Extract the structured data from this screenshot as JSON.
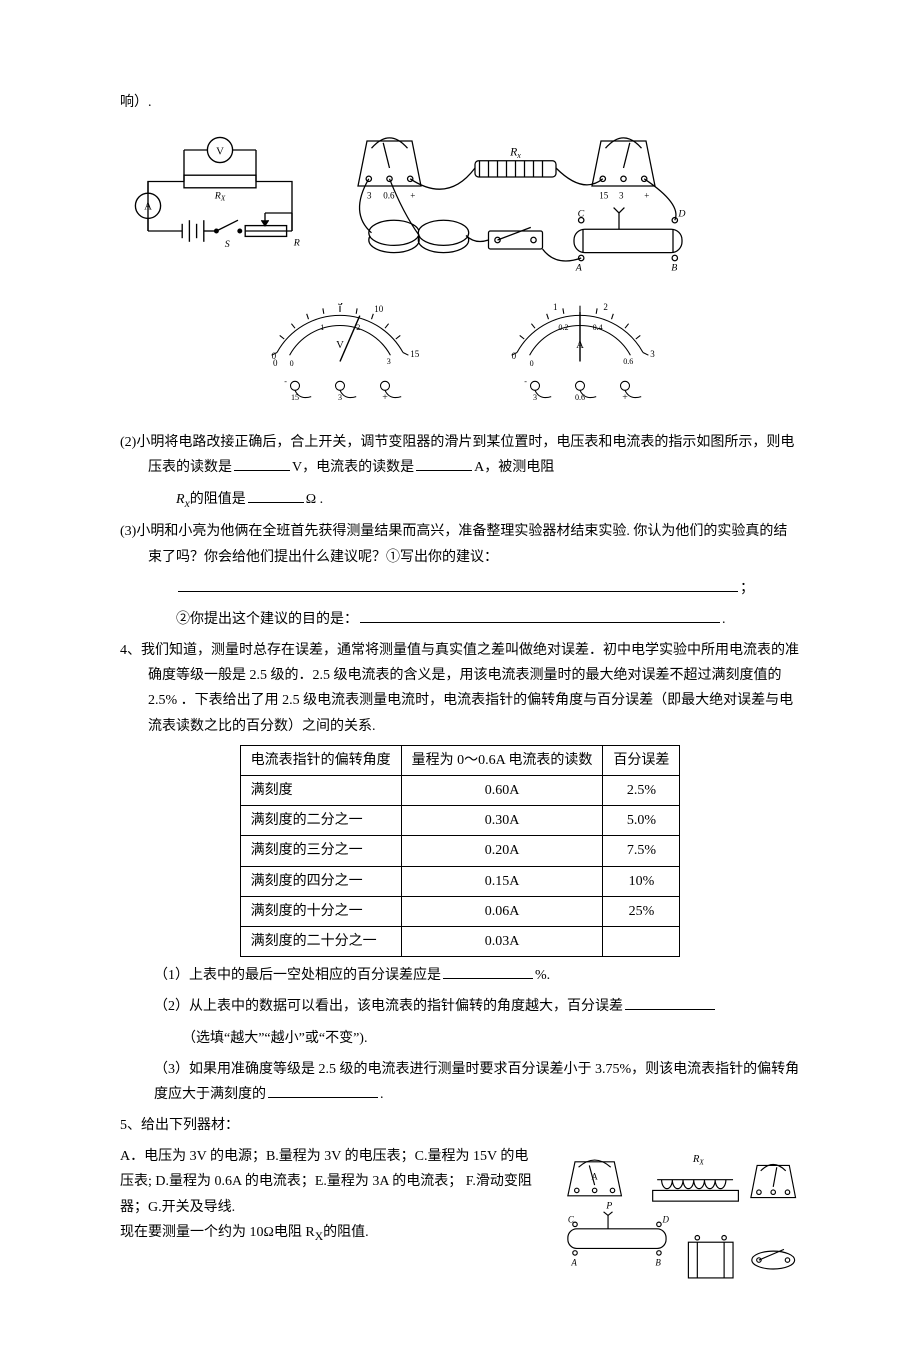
{
  "top_trail": "响）.",
  "circuit_labels": {
    "V": "V",
    "A": "A",
    "Rx": "Rₓ",
    "S": "S",
    "R": "R"
  },
  "physical_labels": {
    "left_scale": "3",
    "left_scale2": "0.6",
    "plus": "+",
    "Rx": "Rₓ",
    "right_scale": "15",
    "right_scale2": "3",
    "A": "A",
    "B": "B",
    "C": "C",
    "D": "D"
  },
  "voltmeter": {
    "top_ticks": [
      "0",
      "",
      "",
      "",
      "",
      "5",
      "",
      "",
      "",
      "",
      "10",
      "",
      "",
      "",
      "",
      "15"
    ],
    "bot_ticks": [
      "0",
      "1",
      "2",
      "3"
    ],
    "unit": "V",
    "term_left": "15",
    "term_mid": "3",
    "term_right": "+",
    "termlabels": [
      "-",
      "15",
      "3",
      "+"
    ]
  },
  "ammeter": {
    "top_ticks": [
      "0",
      "",
      "",
      "",
      "",
      "1",
      "",
      "",
      "",
      "",
      "2",
      "",
      "",
      "",
      "",
      "3"
    ],
    "bot_ticks": [
      "0",
      "0.2",
      "0.4",
      "0.6"
    ],
    "unit": "A",
    "term_left": "3",
    "term_mid": "0.6",
    "term_right": "+",
    "termlabels": [
      "-",
      "3",
      "0.6",
      "+"
    ]
  },
  "q2": {
    "lead": "(2)小明将电路改接正确后，合上开关，调节变阻器的滑片到某位置时，电压表和电流表的指示如图所示，则电压表的读数是",
    "mid1": "V，电流表的读数是",
    "mid2": "A，被测电阻",
    "line2_a": "R",
    "line2_sub": "x",
    "line2_b": "的阻值是",
    "line2_c": "Ω ."
  },
  "q3": {
    "lead": "(3)小明和小亮为他俩在全班首先获得测量结果而高兴，准备整理实验器材结束实验. 你认为他们的实验真的结束了吗？你会给他们提出什么建议呢？①写出你的建议：",
    "tail1": "；",
    "line3": "②你提出这个建议的目的是：",
    "tail2": "."
  },
  "q4": {
    "para": "4、我们知道，测量时总存在误差，通常将测量值与真实值之差叫做绝对误差．初中电学实验中所用电流表的准确度等级一般是 2.5 级的．2.5 级电流表的含义是，用该电流表测量时的最大绝对误差不超过满刻度值的 2.5% ．下表给出了用 2.5 级电流表测量电流时，电流表指针的偏转角度与百分误差（即最大绝对误差与电流表读数之比的百分数）之间的关系.",
    "table": {
      "headers": [
        "电流表指针的偏转角度",
        "量程为 0～0.6A 电流表的读数",
        "百分误差"
      ],
      "rows": [
        [
          "满刻度",
          "0.60A",
          "2.5%"
        ],
        [
          "满刻度的二分之一",
          "0.30A",
          "5.0%"
        ],
        [
          "满刻度的三分之一",
          "0.20A",
          "7.5%"
        ],
        [
          "满刻度的四分之一",
          "0.15A",
          "10%"
        ],
        [
          "满刻度的十分之一",
          "0.06A",
          "25%"
        ],
        [
          "满刻度的二十分之一",
          "0.03A",
          ""
        ]
      ]
    },
    "sub1_a": "（1）上表中的最后一空处相应的百分误差应是",
    "sub1_b": "%.",
    "sub2_a": "（2）从上表中的数据可以看出，该电流表的指针偏转的角度越大，百分误差",
    "sub2_b": "（选填“越大”“越小”或“不变”).",
    "sub3_a": "（3）如果用准确度等级是 2.5 级的电流表进行测量时要求百分误差小于 3.75%，则该电流表指针的偏转角度应大于满刻度的",
    "sub3_b": "."
  },
  "q5": {
    "head": "5、给出下列器材：",
    "body": "A．电压为 3V 的电源；B.量程为 3V 的电压表；C.量程为 15V 的电压表; D.量程为 0.6A 的电流表；E.量程为 3A 的电流表；    F.滑动变阻器；G.开关及导线.",
    "tail_a": "现在要测量一个约为 10Ω电阻 R",
    "tail_sub": "X",
    "tail_b": "的阻值.",
    "fig_labels": {
      "A": "A",
      "Rx": "Rₓ",
      "P": "P",
      "C": "C",
      "D": "D",
      "Aterm": "A",
      "Bterm": "B"
    }
  }
}
